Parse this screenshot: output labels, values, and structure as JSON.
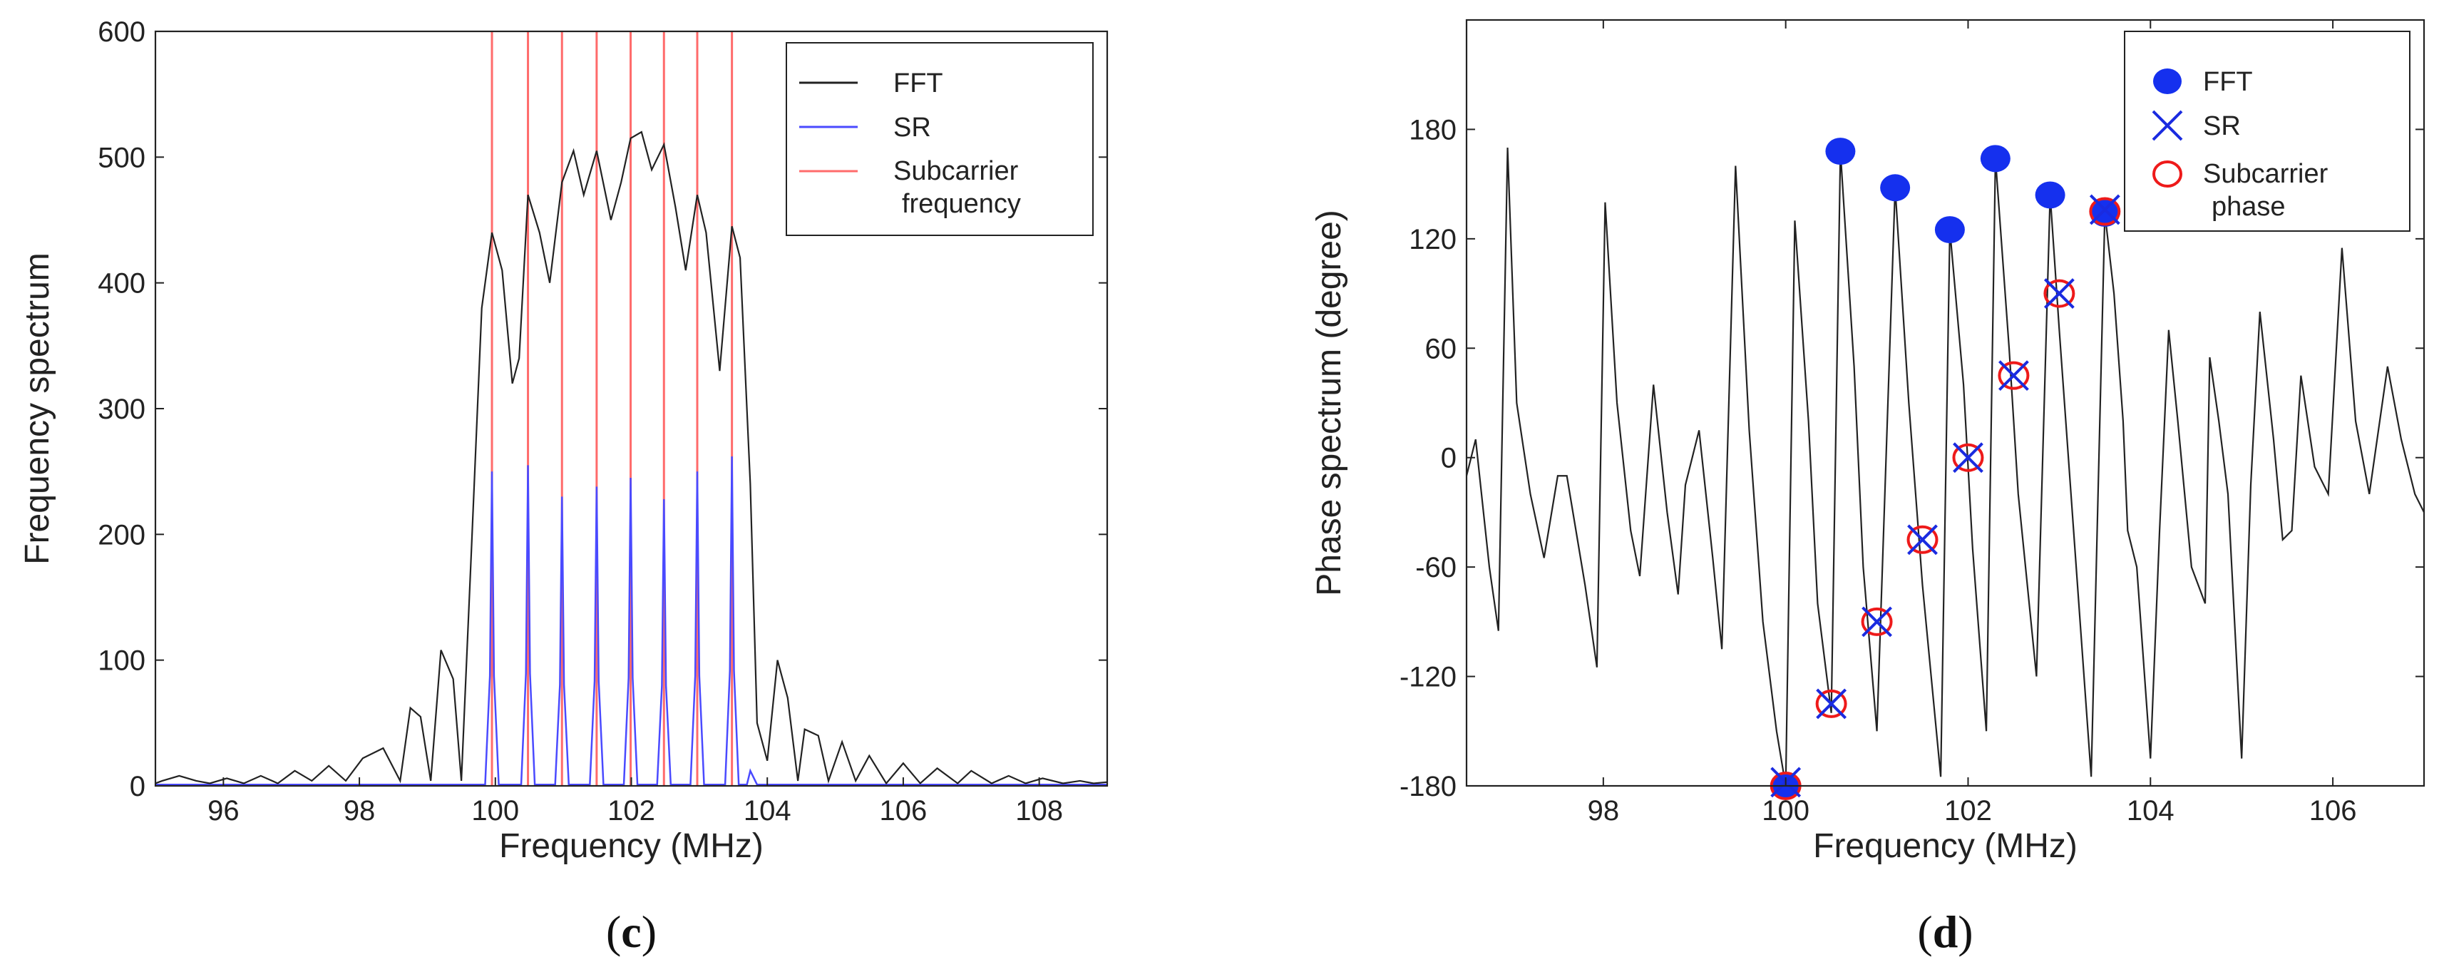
{
  "colors": {
    "fft_line": "#222222",
    "sr_line": "#4a4aff",
    "subcarrier_line": "#ff6b6b",
    "fft_marker": "#1530ee",
    "sr_marker": "#1a2be0",
    "subcarrier_marker": "#ee1a1a"
  },
  "chart_data": [
    {
      "id": "c",
      "type": "line",
      "panel_label_open": "(",
      "panel_label_letter": "c",
      "panel_label_close": ")",
      "xlabel": "Frequency (MHz)",
      "ylabel": "Frequency spectrum",
      "xlim": [
        95,
        109
      ],
      "ylim": [
        0,
        600
      ],
      "xticks": [
        96,
        98,
        100,
        102,
        104,
        106,
        108
      ],
      "yticks": [
        0,
        100,
        200,
        300,
        400,
        500,
        600
      ],
      "legend": {
        "placement": "top-right",
        "entries": [
          "FFT",
          "SR",
          "Subcarrier frequency"
        ]
      },
      "subcarrier_frequencies": [
        99.95,
        100.48,
        100.98,
        101.49,
        101.99,
        102.48,
        102.97,
        103.48
      ],
      "sr_peak_heights": [
        250,
        255,
        230,
        238,
        245,
        228,
        250,
        262
      ],
      "fft_series": {
        "name": "FFT",
        "points": [
          [
            95,
            2
          ],
          [
            95.1,
            4
          ],
          [
            95.35,
            8
          ],
          [
            95.6,
            4
          ],
          [
            95.8,
            2
          ],
          [
            96.05,
            6
          ],
          [
            96.3,
            2
          ],
          [
            96.55,
            8
          ],
          [
            96.8,
            2
          ],
          [
            97.05,
            12
          ],
          [
            97.3,
            4
          ],
          [
            97.55,
            16
          ],
          [
            97.8,
            4
          ],
          [
            98.05,
            22
          ],
          [
            98.35,
            30
          ],
          [
            98.6,
            4
          ],
          [
            98.75,
            62
          ],
          [
            98.9,
            55
          ],
          [
            99.05,
            4
          ],
          [
            99.2,
            108
          ],
          [
            99.38,
            85
          ],
          [
            99.5,
            4
          ],
          [
            99.65,
            190
          ],
          [
            99.8,
            380
          ],
          [
            99.95,
            440
          ],
          [
            100.1,
            410
          ],
          [
            100.25,
            320
          ],
          [
            100.35,
            340
          ],
          [
            100.48,
            470
          ],
          [
            100.65,
            440
          ],
          [
            100.8,
            400
          ],
          [
            100.98,
            480
          ],
          [
            101.15,
            505
          ],
          [
            101.3,
            470
          ],
          [
            101.49,
            505
          ],
          [
            101.7,
            450
          ],
          [
            101.85,
            480
          ],
          [
            101.99,
            515
          ],
          [
            102.15,
            520
          ],
          [
            102.3,
            490
          ],
          [
            102.48,
            510
          ],
          [
            102.65,
            460
          ],
          [
            102.8,
            410
          ],
          [
            102.97,
            470
          ],
          [
            103.1,
            440
          ],
          [
            103.3,
            330
          ],
          [
            103.48,
            445
          ],
          [
            103.6,
            420
          ],
          [
            103.75,
            240
          ],
          [
            103.85,
            50
          ],
          [
            104.0,
            20
          ],
          [
            104.15,
            100
          ],
          [
            104.3,
            70
          ],
          [
            104.45,
            4
          ],
          [
            104.55,
            45
          ],
          [
            104.75,
            40
          ],
          [
            104.9,
            4
          ],
          [
            105.1,
            35
          ],
          [
            105.3,
            4
          ],
          [
            105.5,
            24
          ],
          [
            105.75,
            2
          ],
          [
            106.0,
            18
          ],
          [
            106.25,
            2
          ],
          [
            106.5,
            14
          ],
          [
            106.8,
            2
          ],
          [
            107.0,
            12
          ],
          [
            107.3,
            2
          ],
          [
            107.55,
            8
          ],
          [
            107.8,
            2
          ],
          [
            108.05,
            6
          ],
          [
            108.35,
            2
          ],
          [
            108.6,
            4
          ],
          [
            108.8,
            2
          ],
          [
            109,
            3
          ]
        ]
      }
    },
    {
      "id": "d",
      "type": "line",
      "panel_label_open": "(",
      "panel_label_letter": "d",
      "panel_label_close": ")",
      "xlabel": "Frequency (MHz)",
      "ylabel": "Phase spectrum (degree)",
      "xlim": [
        96.5,
        107
      ],
      "ylim": [
        -180,
        240
      ],
      "xticks": [
        98,
        100,
        102,
        104,
        106
      ],
      "yticks": [
        -180,
        -120,
        -60,
        0,
        60,
        120,
        180
      ],
      "legend": {
        "placement": "top-right",
        "entries": [
          "FFT",
          "SR",
          "Subcarrier phase"
        ]
      },
      "fft_markers": [
        [
          100,
          -180
        ],
        [
          100.6,
          168
        ],
        [
          101.2,
          148
        ],
        [
          101.8,
          125
        ],
        [
          102.3,
          164
        ],
        [
          102.9,
          144
        ],
        [
          103.5,
          134
        ]
      ],
      "sr_markers": [
        [
          100,
          -178
        ],
        [
          100.5,
          -135
        ],
        [
          101,
          -90
        ],
        [
          101.5,
          -45
        ],
        [
          102,
          0
        ],
        [
          102.5,
          45
        ],
        [
          103,
          90
        ],
        [
          103.5,
          136
        ]
      ],
      "subcarrier_markers": [
        [
          100,
          -180
        ],
        [
          100.5,
          -135
        ],
        [
          101,
          -90
        ],
        [
          101.5,
          -45
        ],
        [
          102,
          0
        ],
        [
          102.5,
          45
        ],
        [
          103,
          90
        ],
        [
          103.5,
          135
        ]
      ],
      "phase_series": {
        "name": "FFT phase",
        "points": [
          [
            96.5,
            -10
          ],
          [
            96.6,
            10
          ],
          [
            96.75,
            -60
          ],
          [
            96.85,
            -95
          ],
          [
            96.95,
            170
          ],
          [
            97.05,
            30
          ],
          [
            97.2,
            -20
          ],
          [
            97.35,
            -55
          ],
          [
            97.5,
            -10
          ],
          [
            97.6,
            -10
          ],
          [
            97.8,
            -70
          ],
          [
            97.93,
            -115
          ],
          [
            98.02,
            140
          ],
          [
            98.15,
            30
          ],
          [
            98.3,
            -40
          ],
          [
            98.4,
            -65
          ],
          [
            98.55,
            40
          ],
          [
            98.7,
            -30
          ],
          [
            98.82,
            -75
          ],
          [
            98.9,
            -15
          ],
          [
            99.05,
            15
          ],
          [
            99.2,
            -55
          ],
          [
            99.3,
            -105
          ],
          [
            99.45,
            160
          ],
          [
            99.6,
            15
          ],
          [
            99.75,
            -90
          ],
          [
            99.9,
            -150
          ],
          [
            100.0,
            -180
          ],
          [
            100.1,
            130
          ],
          [
            100.25,
            20
          ],
          [
            100.35,
            -80
          ],
          [
            100.5,
            -140
          ],
          [
            100.6,
            168
          ],
          [
            100.75,
            50
          ],
          [
            100.85,
            -60
          ],
          [
            101.0,
            -150
          ],
          [
            101.2,
            148
          ],
          [
            101.35,
            30
          ],
          [
            101.5,
            -70
          ],
          [
            101.7,
            -175
          ],
          [
            101.8,
            125
          ],
          [
            101.95,
            40
          ],
          [
            102.05,
            -50
          ],
          [
            102.2,
            -150
          ],
          [
            102.3,
            164
          ],
          [
            102.45,
            60
          ],
          [
            102.55,
            -20
          ],
          [
            102.75,
            -120
          ],
          [
            102.9,
            144
          ],
          [
            103.0,
            70
          ],
          [
            103.1,
            0
          ],
          [
            103.35,
            -175
          ],
          [
            103.5,
            134
          ],
          [
            103.6,
            90
          ],
          [
            103.7,
            20
          ],
          [
            103.75,
            -40
          ],
          [
            103.85,
            -60
          ],
          [
            104.0,
            -165
          ],
          [
            104.1,
            -40
          ],
          [
            104.2,
            70
          ],
          [
            104.3,
            20
          ],
          [
            104.45,
            -60
          ],
          [
            104.6,
            -80
          ],
          [
            104.65,
            55
          ],
          [
            104.75,
            20
          ],
          [
            104.85,
            -20
          ],
          [
            105.0,
            -165
          ],
          [
            105.1,
            -15
          ],
          [
            105.2,
            80
          ],
          [
            105.35,
            10
          ],
          [
            105.45,
            -45
          ],
          [
            105.55,
            -40
          ],
          [
            105.65,
            45
          ],
          [
            105.8,
            -5
          ],
          [
            105.95,
            -20
          ],
          [
            106.1,
            115
          ],
          [
            106.25,
            20
          ],
          [
            106.4,
            -20
          ],
          [
            106.6,
            50
          ],
          [
            106.75,
            10
          ],
          [
            106.9,
            -20
          ],
          [
            107,
            -30
          ]
        ]
      }
    }
  ]
}
